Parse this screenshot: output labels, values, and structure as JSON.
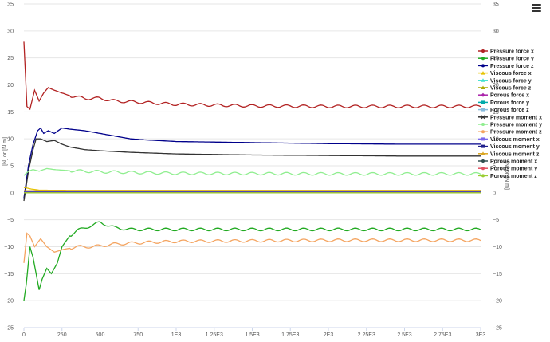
{
  "menu": {
    "icon": "hamburger-menu-icon"
  },
  "chart_data": {
    "type": "line",
    "title": "",
    "xlabel": "",
    "ylabel_left": "[N] or [N m]",
    "ylabel_right": "[N] or [N m]",
    "xlim": [
      0,
      3000
    ],
    "ylim": [
      -25,
      35
    ],
    "grid": true,
    "legend_placement": "right",
    "x_ticks": [
      0,
      250,
      500,
      750,
      1000,
      1250,
      1500,
      1750,
      2000,
      2250,
      2500,
      2750,
      3000
    ],
    "x_tick_labels": [
      "0",
      "250",
      "500",
      "750",
      "1E3",
      "1.25E3",
      "1.5E3",
      "1.75E3",
      "2E3",
      "2.25E3",
      "2.5E3",
      "2.75E3",
      "3E3"
    ],
    "y_ticks": [
      -25,
      -20,
      -15,
      -10,
      -5,
      0,
      5,
      10,
      15,
      20,
      25,
      30,
      35
    ],
    "y_tick_labels": [
      "−25",
      "−20",
      "−15",
      "−10",
      "−5",
      "0",
      "5",
      "10",
      "15",
      "20",
      "25",
      "30",
      "35"
    ],
    "series": [
      {
        "name": "Pressure force x",
        "color": "#b22222",
        "marker": "circle",
        "points": [
          [
            0,
            28
          ],
          [
            20,
            16
          ],
          [
            40,
            15.5
          ],
          [
            70,
            19
          ],
          [
            100,
            17
          ],
          [
            130,
            18.5
          ],
          [
            160,
            19.5
          ],
          [
            200,
            19
          ],
          [
            250,
            18.5
          ],
          [
            300,
            18
          ],
          [
            400,
            17.5
          ],
          [
            500,
            17.5
          ],
          [
            600,
            17
          ],
          [
            750,
            16.8
          ],
          [
            1000,
            16.4
          ],
          [
            1500,
            16.1
          ],
          [
            2000,
            16.0
          ],
          [
            2500,
            16.0
          ],
          [
            3000,
            16.0
          ]
        ]
      },
      {
        "name": "Pressure force y",
        "color": "#22aa22",
        "marker": "circle",
        "points": [
          [
            0,
            -20
          ],
          [
            15,
            -17
          ],
          [
            40,
            -10
          ],
          [
            60,
            -12
          ],
          [
            80,
            -15
          ],
          [
            100,
            -18
          ],
          [
            120,
            -16
          ],
          [
            150,
            -14
          ],
          [
            180,
            -15
          ],
          [
            220,
            -13
          ],
          [
            250,
            -10
          ],
          [
            300,
            -8
          ],
          [
            350,
            -7
          ],
          [
            400,
            -6.5
          ],
          [
            450,
            -6
          ],
          [
            500,
            -5.5
          ],
          [
            550,
            -6
          ],
          [
            600,
            -6.5
          ],
          [
            700,
            -6.8
          ],
          [
            1000,
            -6.8
          ],
          [
            1500,
            -6.8
          ],
          [
            2000,
            -6.8
          ],
          [
            2500,
            -6.8
          ],
          [
            3000,
            -6.8
          ]
        ]
      },
      {
        "name": "Pressure force z",
        "color": "#00008b",
        "marker": "circle",
        "points": [
          [
            0,
            -1
          ],
          [
            30,
            5
          ],
          [
            60,
            9
          ],
          [
            90,
            11.5
          ],
          [
            110,
            12
          ],
          [
            130,
            11
          ],
          [
            160,
            11.5
          ],
          [
            200,
            11
          ],
          [
            250,
            12
          ],
          [
            300,
            11.8
          ],
          [
            400,
            11.5
          ],
          [
            500,
            11
          ],
          [
            600,
            10.5
          ],
          [
            700,
            10
          ],
          [
            800,
            9.8
          ],
          [
            1000,
            9.5
          ],
          [
            1500,
            9.3
          ],
          [
            2000,
            9.1
          ],
          [
            2500,
            9.0
          ],
          [
            3000,
            9.0
          ]
        ]
      },
      {
        "name": "Viscous force x",
        "color": "#e6c200",
        "marker": "triangle",
        "points": [
          [
            0,
            1
          ],
          [
            50,
            0.7
          ],
          [
            100,
            0.5
          ],
          [
            300,
            0.45
          ],
          [
            1000,
            0.45
          ],
          [
            3000,
            0.45
          ]
        ]
      },
      {
        "name": "Viscous force y",
        "color": "#40e0d0",
        "marker": "triangle",
        "points": [
          [
            0,
            0
          ],
          [
            3000,
            0
          ]
        ]
      },
      {
        "name": "Viscous force z",
        "color": "#aaaa00",
        "marker": "triangle",
        "points": [
          [
            0,
            0.3
          ],
          [
            3000,
            0.3
          ]
        ]
      },
      {
        "name": "Porous force x",
        "color": "#aa22aa",
        "marker": "diamond",
        "points": [
          [
            0,
            0
          ],
          [
            3000,
            0
          ]
        ]
      },
      {
        "name": "Porous force y",
        "color": "#00aaaa",
        "marker": "square",
        "points": [
          [
            0,
            0
          ],
          [
            3000,
            0
          ]
        ]
      },
      {
        "name": "Porous force z",
        "color": "#88bbdd",
        "marker": "square",
        "points": [
          [
            0,
            0
          ],
          [
            3000,
            0
          ]
        ]
      },
      {
        "name": "Pressure moment x",
        "color": "#333333",
        "marker": "cross",
        "points": [
          [
            0,
            -1.5
          ],
          [
            30,
            4
          ],
          [
            60,
            8
          ],
          [
            80,
            10
          ],
          [
            110,
            10
          ],
          [
            150,
            9.5
          ],
          [
            200,
            9.7
          ],
          [
            250,
            9
          ],
          [
            300,
            8.5
          ],
          [
            400,
            8
          ],
          [
            500,
            7.8
          ],
          [
            700,
            7.5
          ],
          [
            1000,
            7.2
          ],
          [
            1500,
            7.0
          ],
          [
            2000,
            6.9
          ],
          [
            2500,
            6.8
          ],
          [
            3000,
            6.8
          ]
        ]
      },
      {
        "name": "Pressure moment y",
        "color": "#90ee90",
        "marker": "circle",
        "points": [
          [
            0,
            3.2
          ],
          [
            30,
            4
          ],
          [
            60,
            4.3
          ],
          [
            100,
            4
          ],
          [
            150,
            4.5
          ],
          [
            200,
            4.3
          ],
          [
            300,
            4.1
          ],
          [
            500,
            3.9
          ],
          [
            1000,
            3.6
          ],
          [
            2000,
            3.5
          ],
          [
            3000,
            3.5
          ]
        ]
      },
      {
        "name": "Pressure moment z",
        "color": "#f4a460",
        "marker": "circle",
        "points": [
          [
            0,
            -13
          ],
          [
            20,
            -7.5
          ],
          [
            40,
            -8
          ],
          [
            70,
            -10
          ],
          [
            110,
            -8.5
          ],
          [
            150,
            -10
          ],
          [
            200,
            -11
          ],
          [
            260,
            -10.5
          ],
          [
            350,
            -10
          ],
          [
            450,
            -10
          ],
          [
            600,
            -9.5
          ],
          [
            800,
            -9.2
          ],
          [
            1000,
            -9.0
          ],
          [
            1500,
            -8.9
          ],
          [
            2000,
            -8.8
          ],
          [
            2500,
            -8.8
          ],
          [
            3000,
            -8.8
          ]
        ]
      },
      {
        "name": "Viscous moment x",
        "color": "#7b68ee",
        "marker": "square",
        "points": [
          [
            0,
            0.2
          ],
          [
            3000,
            0.2
          ]
        ]
      },
      {
        "name": "Viscous moment y",
        "color": "#1e1e8b",
        "marker": "square",
        "points": [
          [
            0,
            0.1
          ],
          [
            3000,
            0.1
          ]
        ]
      },
      {
        "name": "Viscous moment z",
        "color": "#daa520",
        "marker": "triangle",
        "points": [
          [
            0,
            0.4
          ],
          [
            3000,
            0.4
          ]
        ]
      },
      {
        "name": "Porous moment x",
        "color": "#2f4f4f",
        "marker": "circle",
        "points": [
          [
            0,
            0
          ],
          [
            3000,
            0
          ]
        ]
      },
      {
        "name": "Porous moment y",
        "color": "#e05060",
        "marker": "circle",
        "points": [
          [
            0,
            0
          ],
          [
            3000,
            0
          ]
        ]
      },
      {
        "name": "Porous moment z",
        "color": "#9acd32",
        "marker": "circle",
        "points": [
          [
            0,
            0
          ],
          [
            3000,
            0
          ]
        ]
      }
    ]
  }
}
